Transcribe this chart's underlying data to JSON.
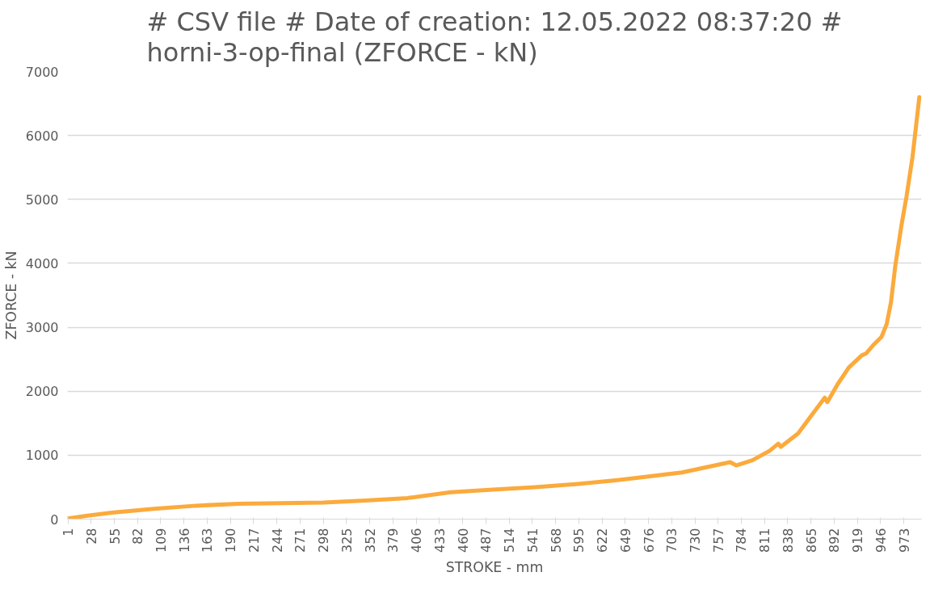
{
  "chart_data": {
    "type": "line",
    "title": "# CSV file # Date of creation: 12.05.2022 08:37:20 # horni-3-op-final (ZFORCE - kN)",
    "xlabel": "STROKE - mm",
    "ylabel": "ZFORCE - kN",
    "x": [
      1,
      22,
      52,
      101,
      150,
      200,
      249,
      298,
      347,
      396,
      446,
      495,
      544,
      594,
      633,
      666,
      715,
      771,
      778,
      797,
      817,
      827,
      830,
      850,
      866,
      881,
      884,
      896,
      909,
      924,
      929,
      938,
      947,
      953,
      958,
      963,
      970,
      976,
      983,
      991
    ],
    "series": [
      {
        "color": "#fbaa3c",
        "values": [
          10,
          50,
          100,
          160,
          210,
          240,
          250,
          260,
          290,
          330,
          420,
          460,
          500,
          550,
          600,
          650,
          730,
          890,
          840,
          920,
          1070,
          1180,
          1130,
          1340,
          1630,
          1900,
          1830,
          2110,
          2370,
          2560,
          2590,
          2730,
          2850,
          3050,
          3390,
          3960,
          4580,
          5040,
          5660,
          6600
        ]
      }
    ],
    "xlim": [
      0.5,
      993.5
    ],
    "xticks": [
      1,
      28,
      55,
      82,
      109,
      136,
      163,
      190,
      217,
      244,
      271,
      298,
      325,
      352,
      379,
      406,
      433,
      460,
      487,
      514,
      541,
      568,
      595,
      622,
      649,
      676,
      703,
      730,
      757,
      784,
      811,
      838,
      865,
      892,
      919,
      946,
      973
    ],
    "ylim": [
      0,
      7000
    ],
    "yticks": [
      0,
      1000,
      2000,
      3000,
      4000,
      5000,
      6000,
      7000
    ],
    "grid": "y",
    "marker": "none",
    "line_style": "solid"
  }
}
